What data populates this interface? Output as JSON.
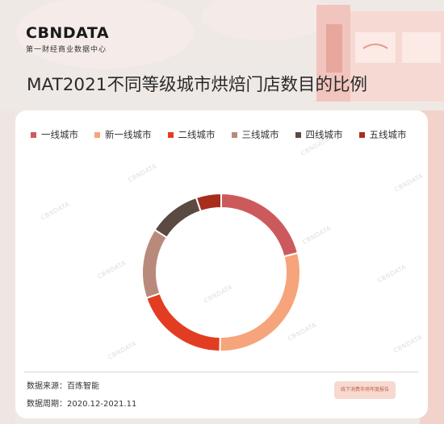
{
  "brand": {
    "logo": "CBNDATA",
    "subtitle": "第一财经商业数据中心"
  },
  "page_title": "MAT2021不同等级城市烘焙门店数目的比例",
  "watermark": "CBNDATA",
  "footer": {
    "source": "数据来源：百炼智能",
    "period": "数据周期：2020.12-2021.11"
  },
  "badge_text": "线下消费市场年度报告",
  "chart_data": {
    "type": "pie",
    "style": "donut",
    "title": "",
    "legend_position": "top",
    "categories": [
      "一线城市",
      "新一线城市",
      "二线城市",
      "三线城市",
      "四线城市",
      "五线城市"
    ],
    "values": [
      20.5,
      28.5,
      19.0,
      14.0,
      10.5,
      5.0
    ],
    "colors": [
      "#cc5a5c",
      "#f6a47b",
      "#e23d22",
      "#b98a7c",
      "#5a4a42",
      "#a72d1d"
    ]
  }
}
